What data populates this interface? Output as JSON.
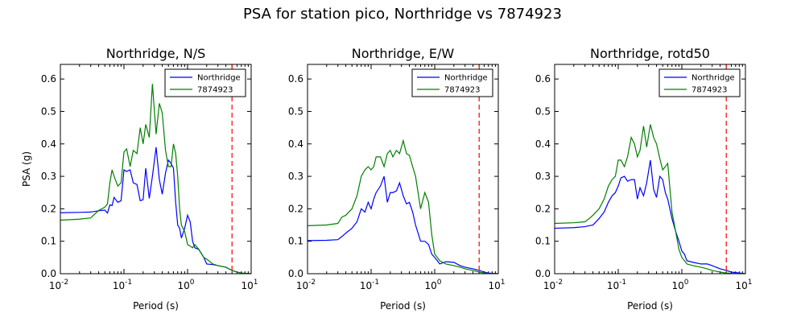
{
  "figure": {
    "suptitle": "PSA for station pico, Northridge vs 7874923"
  },
  "chart_data": [
    {
      "type": "line",
      "title": "Northridge, N/S",
      "xlabel": "Period (s)",
      "ylabel": "PSA (g)",
      "xscale": "log",
      "xlim": [
        0.01,
        10
      ],
      "ylim": [
        0,
        0.645
      ],
      "yticks": [
        "0.0",
        "0.1",
        "0.2",
        "0.3",
        "0.4",
        "0.5",
        "0.6"
      ],
      "xticks": [
        {
          "base": "10",
          "exp": "-2"
        },
        {
          "base": "10",
          "exp": "-1"
        },
        {
          "base": "10",
          "exp": "0"
        },
        {
          "base": "10",
          "exp": "1"
        }
      ],
      "legend": "upper-right",
      "vline": {
        "x": 5,
        "color": "#ff0000",
        "style": "dashed"
      },
      "series": [
        {
          "name": "Northridge",
          "color": "#0000ff",
          "x": [
            0.01,
            0.02,
            0.03,
            0.04,
            0.05,
            0.055,
            0.06,
            0.065,
            0.07,
            0.08,
            0.09,
            0.1,
            0.11,
            0.125,
            0.14,
            0.16,
            0.18,
            0.2,
            0.22,
            0.25,
            0.28,
            0.32,
            0.36,
            0.4,
            0.45,
            0.5,
            0.55,
            0.6,
            0.65,
            0.7,
            0.75,
            0.8,
            0.9,
            1.0,
            1.1,
            1.2,
            1.3,
            1.5,
            1.8,
            2.0,
            2.5,
            3.0,
            4.0,
            5.0,
            6.0,
            7.0,
            8.0,
            10.0
          ],
          "y": [
            0.188,
            0.189,
            0.19,
            0.194,
            0.196,
            0.187,
            0.212,
            0.21,
            0.235,
            0.22,
            0.225,
            0.32,
            0.315,
            0.32,
            0.28,
            0.275,
            0.225,
            0.228,
            0.325,
            0.232,
            0.3,
            0.39,
            0.29,
            0.245,
            0.31,
            0.35,
            0.34,
            0.325,
            0.22,
            0.15,
            0.14,
            0.11,
            0.14,
            0.18,
            0.16,
            0.1,
            0.08,
            0.075,
            0.05,
            0.03,
            0.028,
            0.025,
            0.02,
            0.01,
            0.005,
            0.002,
            0.001,
            0.0
          ]
        },
        {
          "name": "7874923",
          "color": "#008000",
          "x": [
            0.01,
            0.02,
            0.03,
            0.04,
            0.05,
            0.055,
            0.06,
            0.065,
            0.07,
            0.08,
            0.09,
            0.1,
            0.11,
            0.125,
            0.14,
            0.16,
            0.18,
            0.2,
            0.22,
            0.25,
            0.28,
            0.32,
            0.36,
            0.4,
            0.45,
            0.5,
            0.55,
            0.6,
            0.65,
            0.7,
            0.75,
            0.8,
            0.9,
            1.0,
            1.1,
            1.2,
            1.3,
            1.5,
            1.8,
            2.0,
            2.5,
            3.0,
            4.0,
            5.0,
            6.0,
            7.0,
            8.0,
            10.0
          ],
          "y": [
            0.165,
            0.168,
            0.172,
            0.195,
            0.205,
            0.215,
            0.28,
            0.32,
            0.3,
            0.27,
            0.28,
            0.375,
            0.385,
            0.33,
            0.38,
            0.37,
            0.45,
            0.4,
            0.46,
            0.42,
            0.585,
            0.43,
            0.525,
            0.495,
            0.38,
            0.33,
            0.33,
            0.4,
            0.37,
            0.3,
            0.2,
            0.15,
            0.13,
            0.09,
            0.085,
            0.08,
            0.09,
            0.075,
            0.05,
            0.045,
            0.03,
            0.025,
            0.02,
            0.01,
            0.005,
            0.002,
            0.001,
            0.0
          ]
        }
      ]
    },
    {
      "type": "line",
      "title": "Northridge, E/W",
      "xlabel": "Period (s)",
      "ylabel": "",
      "xscale": "log",
      "xlim": [
        0.01,
        10
      ],
      "ylim": [
        0,
        0.645
      ],
      "yticks": [
        "0.0",
        "0.1",
        "0.2",
        "0.3",
        "0.4",
        "0.5",
        "0.6"
      ],
      "xticks": [
        {
          "base": "10",
          "exp": "-2"
        },
        {
          "base": "10",
          "exp": "-1"
        },
        {
          "base": "10",
          "exp": "0"
        },
        {
          "base": "10",
          "exp": "1"
        }
      ],
      "legend": "upper-right",
      "vline": {
        "x": 5,
        "color": "#ff0000",
        "style": "dashed"
      },
      "series": [
        {
          "name": "Northridge",
          "color": "#0000ff",
          "x": [
            0.01,
            0.02,
            0.03,
            0.035,
            0.04,
            0.05,
            0.06,
            0.07,
            0.08,
            0.09,
            0.1,
            0.11,
            0.12,
            0.14,
            0.16,
            0.18,
            0.2,
            0.22,
            0.25,
            0.28,
            0.32,
            0.36,
            0.4,
            0.45,
            0.5,
            0.6,
            0.7,
            0.8,
            0.9,
            1.0,
            1.1,
            1.2,
            1.5,
            2.0,
            2.5,
            3.0,
            4.0,
            5.0,
            6.0,
            7.0,
            10.0
          ],
          "y": [
            0.102,
            0.103,
            0.105,
            0.115,
            0.125,
            0.14,
            0.16,
            0.2,
            0.19,
            0.22,
            0.2,
            0.23,
            0.25,
            0.27,
            0.3,
            0.22,
            0.25,
            0.25,
            0.255,
            0.28,
            0.24,
            0.215,
            0.22,
            0.19,
            0.15,
            0.1,
            0.1,
            0.09,
            0.06,
            0.05,
            0.04,
            0.03,
            0.037,
            0.035,
            0.025,
            0.02,
            0.015,
            0.01,
            0.005,
            0.002,
            0.0
          ]
        },
        {
          "name": "7874923",
          "color": "#008000",
          "x": [
            0.01,
            0.02,
            0.03,
            0.035,
            0.04,
            0.05,
            0.06,
            0.07,
            0.08,
            0.09,
            0.1,
            0.11,
            0.12,
            0.14,
            0.16,
            0.18,
            0.2,
            0.22,
            0.25,
            0.28,
            0.32,
            0.36,
            0.4,
            0.45,
            0.5,
            0.6,
            0.7,
            0.8,
            0.9,
            1.0,
            1.1,
            1.2,
            1.5,
            2.0,
            2.5,
            3.0,
            4.0,
            5.0,
            6.0,
            7.0,
            10.0
          ],
          "y": [
            0.148,
            0.15,
            0.155,
            0.175,
            0.18,
            0.2,
            0.24,
            0.3,
            0.32,
            0.33,
            0.32,
            0.33,
            0.36,
            0.36,
            0.33,
            0.37,
            0.38,
            0.36,
            0.38,
            0.37,
            0.41,
            0.37,
            0.365,
            0.33,
            0.3,
            0.2,
            0.25,
            0.22,
            0.12,
            0.06,
            0.05,
            0.04,
            0.03,
            0.025,
            0.02,
            0.015,
            0.01,
            0.005,
            0.002,
            0.001,
            0.0
          ]
        }
      ]
    },
    {
      "type": "line",
      "title": "Northridge, rotd50",
      "xlabel": "Period (s)",
      "ylabel": "",
      "xscale": "log",
      "xlim": [
        0.01,
        10
      ],
      "ylim": [
        0,
        0.645
      ],
      "yticks": [
        "0.0",
        "0.1",
        "0.2",
        "0.3",
        "0.4",
        "0.5",
        "0.6"
      ],
      "xticks": [
        {
          "base": "10",
          "exp": "-2"
        },
        {
          "base": "10",
          "exp": "-1"
        },
        {
          "base": "10",
          "exp": "0"
        },
        {
          "base": "10",
          "exp": "1"
        }
      ],
      "legend": "upper-right",
      "vline": {
        "x": 5,
        "color": "#ff0000",
        "style": "dashed"
      },
      "series": [
        {
          "name": "Northridge",
          "color": "#0000ff",
          "x": [
            0.01,
            0.02,
            0.03,
            0.035,
            0.04,
            0.05,
            0.06,
            0.07,
            0.08,
            0.09,
            0.1,
            0.11,
            0.125,
            0.14,
            0.16,
            0.18,
            0.2,
            0.22,
            0.25,
            0.28,
            0.32,
            0.36,
            0.4,
            0.45,
            0.5,
            0.55,
            0.6,
            0.7,
            0.8,
            0.9,
            1.0,
            1.1,
            1.2,
            1.5,
            2.0,
            2.5,
            3.0,
            4.0,
            5.0,
            6.0,
            10.0
          ],
          "y": [
            0.14,
            0.142,
            0.145,
            0.148,
            0.15,
            0.17,
            0.19,
            0.22,
            0.24,
            0.25,
            0.27,
            0.295,
            0.3,
            0.285,
            0.29,
            0.29,
            0.23,
            0.265,
            0.24,
            0.28,
            0.35,
            0.26,
            0.235,
            0.3,
            0.29,
            0.25,
            0.23,
            0.17,
            0.13,
            0.1,
            0.07,
            0.06,
            0.04,
            0.035,
            0.03,
            0.03,
            0.025,
            0.015,
            0.01,
            0.005,
            0.0
          ]
        },
        {
          "name": "7874923",
          "color": "#008000",
          "x": [
            0.01,
            0.02,
            0.03,
            0.035,
            0.04,
            0.05,
            0.06,
            0.07,
            0.08,
            0.09,
            0.1,
            0.11,
            0.125,
            0.14,
            0.16,
            0.18,
            0.2,
            0.22,
            0.25,
            0.28,
            0.32,
            0.36,
            0.4,
            0.45,
            0.5,
            0.55,
            0.6,
            0.7,
            0.8,
            0.9,
            1.0,
            1.1,
            1.2,
            1.5,
            2.0,
            2.5,
            3.0,
            4.0,
            5.0,
            6.0,
            10.0
          ],
          "y": [
            0.155,
            0.157,
            0.16,
            0.17,
            0.18,
            0.2,
            0.23,
            0.27,
            0.29,
            0.3,
            0.35,
            0.35,
            0.33,
            0.36,
            0.42,
            0.4,
            0.36,
            0.38,
            0.455,
            0.39,
            0.46,
            0.42,
            0.4,
            0.355,
            0.32,
            0.33,
            0.34,
            0.19,
            0.13,
            0.075,
            0.05,
            0.04,
            0.03,
            0.025,
            0.02,
            0.015,
            0.01,
            0.005,
            0.002,
            0.001,
            0.0
          ]
        }
      ]
    }
  ]
}
